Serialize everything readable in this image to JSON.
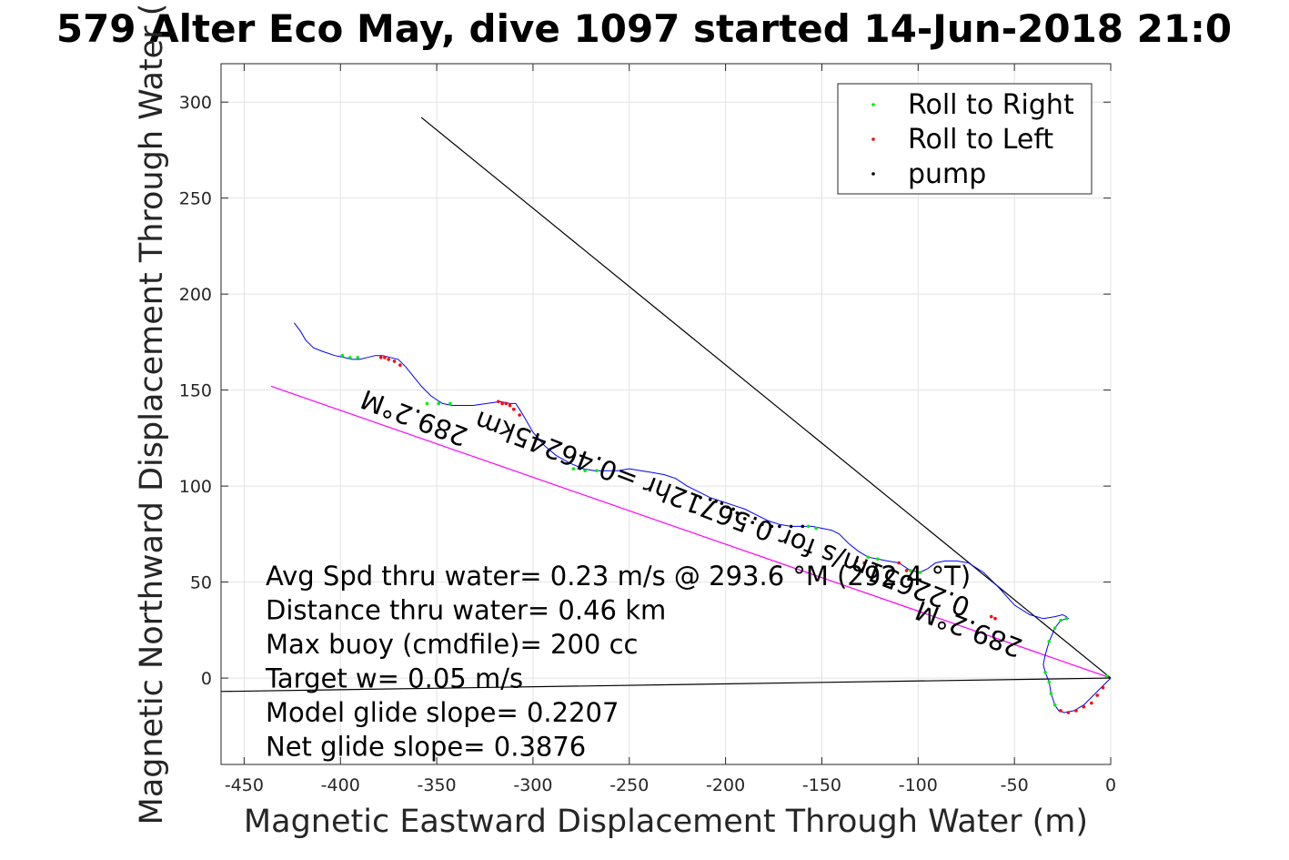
{
  "chart_data": {
    "type": "line",
    "title": "579 Alter Eco May, dive 1097 started 14-Jun-2018 21:0",
    "xlabel": "Magnetic Eastward Displacement Through Water (m)",
    "ylabel": "Magnetic Northward Displacement Through Water (",
    "xlim": [
      -462,
      0
    ],
    "ylim": [
      -45,
      320
    ],
    "xticks": [
      -450,
      -400,
      -350,
      -300,
      -250,
      -200,
      -150,
      -100,
      -50,
      0
    ],
    "yticks": [
      0,
      50,
      100,
      150,
      200,
      250,
      300
    ],
    "xtick_labels": [
      "-450",
      "-400",
      "-350",
      "-300",
      "-250",
      "-200",
      "-150",
      "-100",
      "-50",
      "0"
    ],
    "ytick_labels": [
      "0",
      "50",
      "100",
      "150",
      "200",
      "250",
      "300"
    ],
    "grid": true,
    "legend_position": "top-right",
    "legend": [
      {
        "label": "Roll to Right",
        "color": "#00ee00"
      },
      {
        "label": "Roll to Left",
        "color": "#ff0000"
      },
      {
        "label": "pump",
        "color": "#000000"
      }
    ],
    "track": {
      "color": "#0000ff",
      "x": [
        0,
        -4,
        -9,
        -14,
        -19,
        -24,
        -27,
        -29,
        -31,
        -32,
        -34,
        -35,
        -34,
        -32,
        -29,
        -26,
        -23,
        -22,
        -23,
        -25,
        -29,
        -35,
        -42,
        -50,
        -58,
        -66,
        -74,
        -80,
        -86,
        -91,
        -95,
        -99,
        -104,
        -110,
        -116,
        -121,
        -126,
        -131,
        -136,
        -141,
        -145,
        -150,
        -155,
        -160,
        -166,
        -172,
        -178,
        -184,
        -190,
        -196,
        -202,
        -208,
        -214,
        -220,
        -226,
        -232,
        -238,
        -244,
        -250,
        -256,
        -262,
        -268,
        -274,
        -281,
        -288,
        -294,
        -300,
        -304,
        -307,
        -309,
        -312,
        -317,
        -324,
        -331,
        -337,
        -342,
        -347,
        -353,
        -358,
        -362,
        -366,
        -370,
        -374,
        -378,
        -382,
        -386,
        -390,
        -394,
        -398,
        -403,
        -409,
        -414,
        -418,
        -421,
        -424
      ],
      "y": [
        0,
        -4,
        -9,
        -14,
        -17,
        -18,
        -17,
        -14,
        -8,
        -2,
        3,
        7,
        12,
        19,
        26,
        30,
        31,
        31,
        32,
        33,
        32,
        31,
        33,
        38,
        47,
        55,
        60,
        61,
        61,
        60,
        57,
        55,
        56,
        60,
        61,
        62,
        63,
        66,
        70,
        75,
        77,
        78,
        79,
        79,
        79,
        80,
        82,
        85,
        88,
        90,
        92,
        94,
        97,
        100,
        104,
        106,
        107,
        108,
        109,
        108,
        108,
        108,
        109,
        112,
        116,
        121,
        128,
        135,
        140,
        143,
        143,
        144,
        143,
        142,
        142,
        142,
        143,
        147,
        152,
        157,
        162,
        166,
        167,
        168,
        168,
        167,
        166,
        166,
        167,
        168,
        170,
        172,
        176,
        181,
        185
      ]
    },
    "lines": [
      {
        "name": "heading-line",
        "color": "#ff00ff",
        "x": [
          0,
          -436
        ],
        "y": [
          0,
          152
        ]
      },
      {
        "name": "course-line",
        "color": "#000000",
        "x": [
          0,
          -358
        ],
        "y": [
          0,
          292
        ]
      },
      {
        "name": "current-line",
        "color": "#000000",
        "x": [
          0,
          -462
        ],
        "y": [
          0,
          -7
        ]
      }
    ],
    "markers": {
      "roll_right": {
        "color": "#00ee00",
        "x": [
          -2,
          -29,
          -31,
          -32,
          -34,
          -23,
          -26,
          -29,
          -32,
          -99,
          -104,
          -121,
          -126,
          -153,
          -157,
          -267,
          -273,
          -279,
          -343,
          -349,
          -355,
          -391,
          -395,
          -399
        ],
        "y": [
          1,
          -14,
          -8,
          -2,
          3,
          31,
          30,
          26,
          19,
          55,
          56,
          62,
          63,
          78,
          79,
          108,
          108,
          109,
          143,
          143,
          143,
          167,
          167,
          168
        ]
      },
      "roll_left": {
        "color": "#ff0000",
        "x": [
          -4,
          -7,
          -10,
          -14,
          -18,
          -22,
          -26,
          -60,
          -62,
          -106,
          -110,
          -128,
          -132,
          -307,
          -310,
          -312,
          -314,
          -316,
          -318,
          -369,
          -372,
          -375,
          -377,
          -379
        ],
        "y": [
          -5,
          -9,
          -13,
          -15,
          -17,
          -18,
          -17,
          31,
          32,
          56,
          60,
          60,
          61,
          137,
          140,
          142,
          143,
          143,
          144,
          163,
          165,
          166,
          167,
          167
        ]
      },
      "pump": {
        "color": "#000000",
        "x": [
          -213,
          -208,
          -205,
          -202,
          -199,
          -196,
          -194,
          -190,
          -186,
          -181,
          -176,
          -172,
          -166,
          -160
        ],
        "y": [
          94,
          93,
          92,
          91,
          89,
          88,
          86,
          83,
          81,
          80,
          79,
          79,
          79,
          79
        ]
      }
    },
    "rotated_annotations": [
      {
        "text": "289.2°M",
        "x": -360,
        "y": 140,
        "angle": 201
      },
      {
        "text": "0.22651m/s for 0.56712hr =0.46245km",
        "x": -200,
        "y": 90,
        "angle": 201
      },
      {
        "text": "289.2°M",
        "x": -72,
        "y": 30,
        "angle": 201
      }
    ],
    "annotations": [
      "Avg Spd thru water=  0.23 m/s @ 293.6 °M (292.4 °T)",
      "Distance thru water=  0.46 km",
      "Max buoy (cmdfile)= 200 cc",
      "Target w= 0.05 m/s",
      "Model glide slope= 0.2207",
      "Net glide slope= 0.3876"
    ]
  }
}
